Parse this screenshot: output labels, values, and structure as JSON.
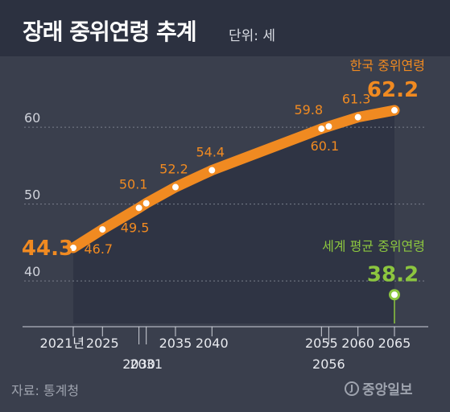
{
  "header": {
    "title": "장래 중위연령 추계",
    "unit": "단위: 세"
  },
  "source": "자료: 통계청",
  "logo_text": "중앙일보",
  "logo_mark": "J",
  "colors": {
    "background": "#3a3f4d",
    "plot_area": "#2f3444",
    "korea_line": "#f08a21",
    "world_line": "#8cc63f",
    "gridline": "#7a7f8c",
    "label_orange": "#f08a21",
    "label_green": "#8cc63f"
  },
  "chart_data": {
    "type": "line",
    "title": "장래 중위연령 추계",
    "unit": "단위: 세",
    "y_ticks": [
      40,
      50,
      60
    ],
    "ylim": [
      35,
      65
    ],
    "x_axis": {
      "ticks": [
        {
          "year": 2021,
          "label": "2021년",
          "row": 1
        },
        {
          "year": 2025,
          "label": "2025",
          "row": 1
        },
        {
          "year": 2030,
          "label": "2030",
          "row": 2
        },
        {
          "year": 2031,
          "label": "2031",
          "row": 2
        },
        {
          "year": 2035,
          "label": "2035",
          "row": 1
        },
        {
          "year": 2040,
          "label": "2040",
          "row": 1
        },
        {
          "year": 2055,
          "label": "2055",
          "row": 1
        },
        {
          "year": 2056,
          "label": "2056",
          "row": 2
        },
        {
          "year": 2060,
          "label": "2060",
          "row": 1
        },
        {
          "year": 2065,
          "label": "2065",
          "row": 1
        }
      ]
    },
    "series": [
      {
        "name": "한국 중위연령",
        "points": [
          {
            "year": 2021,
            "value": 44.3,
            "label": "44.3",
            "emphasis": true,
            "pos": "left"
          },
          {
            "year": 2025,
            "value": 46.7,
            "label": "46.7",
            "pos": "below"
          },
          {
            "year": 2030,
            "value": 49.5,
            "label": "49.5",
            "pos": "below"
          },
          {
            "year": 2031,
            "value": 50.1,
            "label": "50.1",
            "pos": "above-left"
          },
          {
            "year": 2035,
            "value": 52.2,
            "label": "52.2",
            "pos": "above"
          },
          {
            "year": 2040,
            "value": 54.4,
            "label": "54.4",
            "pos": "above"
          },
          {
            "year": 2055,
            "value": 59.8,
            "label": "59.8",
            "pos": "above-left"
          },
          {
            "year": 2056,
            "value": 60.1,
            "label": "60.1",
            "pos": "below"
          },
          {
            "year": 2060,
            "value": 61.3,
            "label": "61.3",
            "pos": "above"
          },
          {
            "year": 2065,
            "value": 62.2,
            "label": "62.2",
            "emphasis": true,
            "pos": "above"
          }
        ]
      },
      {
        "name": "세계 평균 중위연령",
        "points": [
          {
            "year": 2065,
            "value": 38.2,
            "label": "38.2",
            "emphasis": true,
            "pos": "above"
          }
        ]
      }
    ]
  }
}
